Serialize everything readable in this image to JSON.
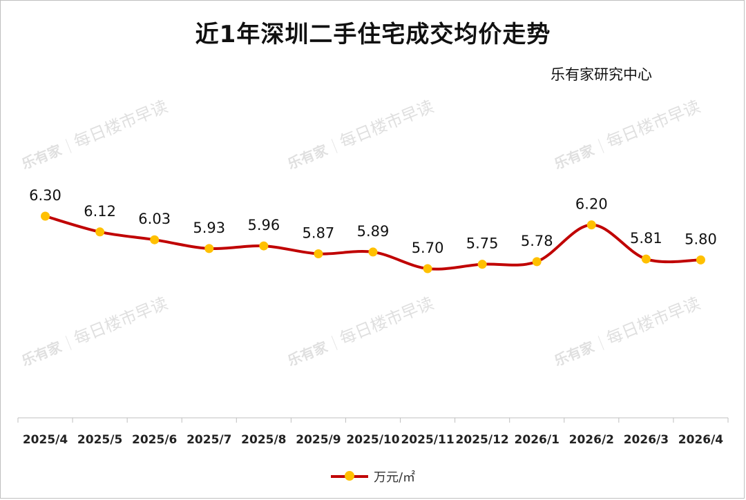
{
  "chart_data": {
    "type": "line",
    "title": "近1年深圳二手住宅成交均价走势",
    "source": "乐有家研究中心",
    "categories": [
      "2025/4",
      "2025/5",
      "2025/6",
      "2025/7",
      "2025/8",
      "2025/9",
      "2025/10",
      "2025/11",
      "2025/12",
      "2026/1",
      "2026/2",
      "2026/3",
      "2026/4"
    ],
    "series": [
      {
        "name": "万元/㎡",
        "values": [
          6.3,
          6.12,
          6.03,
          5.93,
          5.96,
          5.87,
          5.89,
          5.7,
          5.75,
          5.78,
          6.2,
          5.81,
          5.8
        ]
      }
    ],
    "data_labels": [
      "6.30",
      "6.12",
      "6.03",
      "5.93",
      "5.96",
      "5.87",
      "5.89",
      "5.70",
      "5.75",
      "5.78",
      "6.20",
      "5.81",
      "5.80"
    ],
    "colors": {
      "line": "#c00000",
      "marker": "#ffc000"
    },
    "grid": false,
    "legend_position": "bottom"
  },
  "watermark": {
    "logo": "乐有家",
    "text": "每日楼市早读"
  }
}
